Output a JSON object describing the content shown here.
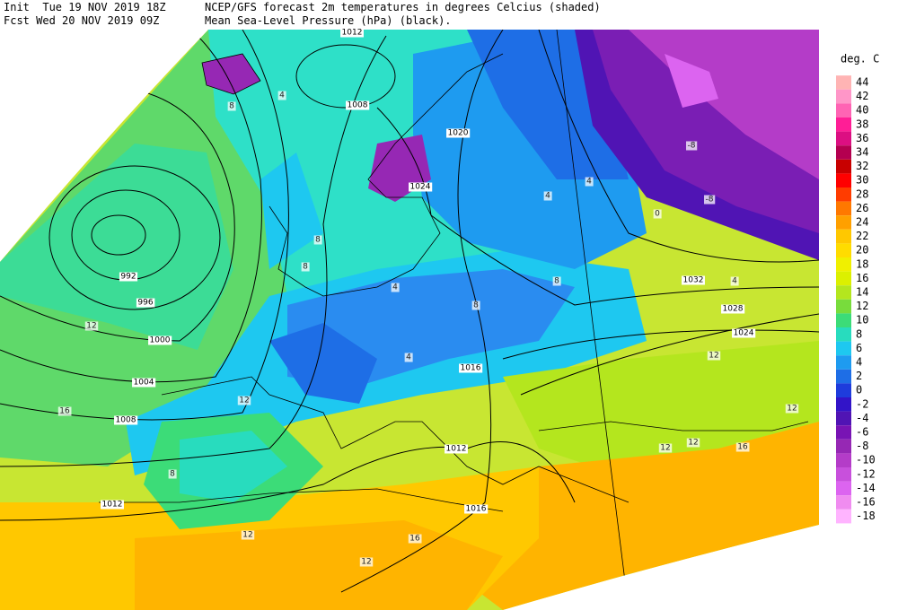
{
  "header": {
    "init_label": "Init  Tue 19 NOV 2019 18Z",
    "title": "NCEP/GFS forecast 2m temperatures in degrees Celcius (shaded)",
    "fcst_label": "Fcst Wed 20 NOV 2019 09Z",
    "subtitle": "Mean Sea-Level Pressure (hPa) (black)."
  },
  "legend": {
    "title": "deg. C",
    "levels": [
      44,
      42,
      40,
      38,
      36,
      34,
      32,
      30,
      28,
      26,
      24,
      22,
      20,
      18,
      16,
      14,
      12,
      10,
      8,
      6,
      4,
      2,
      0,
      -2,
      -4,
      -6,
      -8,
      -10,
      -12,
      -14,
      -16,
      -18
    ],
    "colors": [
      "#ffb4b4",
      "#ff96c8",
      "#ff64b4",
      "#ff1e96",
      "#dc0f82",
      "#b40050",
      "#c80000",
      "#ff0000",
      "#ff3c00",
      "#ff7800",
      "#ffa000",
      "#ffc800",
      "#ffdc00",
      "#f0f000",
      "#dcf000",
      "#b4e61e",
      "#78dc3c",
      "#3cdc78",
      "#28dcbe",
      "#1ec8f0",
      "#1e9bf0",
      "#1e6ee6",
      "#1e3cdc",
      "#3214c8",
      "#5014b4",
      "#7814b4",
      "#9628b4",
      "#b43cc8",
      "#c850dc",
      "#dc64f0",
      "#f08cf0",
      "#ffb4ff"
    ]
  },
  "isobar_labels": [
    1012,
    1008,
    1020,
    1024,
    992,
    996,
    1000,
    1004,
    1008,
    1012,
    1016,
    1012,
    1016,
    1032,
    1028,
    1024
  ],
  "temperature_labels": [
    8,
    4,
    8,
    8,
    4,
    12,
    16,
    12,
    8,
    12,
    12,
    16,
    12,
    12,
    16,
    12,
    12,
    4,
    4,
    -8,
    -8,
    0,
    4,
    8,
    8,
    4
  ]
}
